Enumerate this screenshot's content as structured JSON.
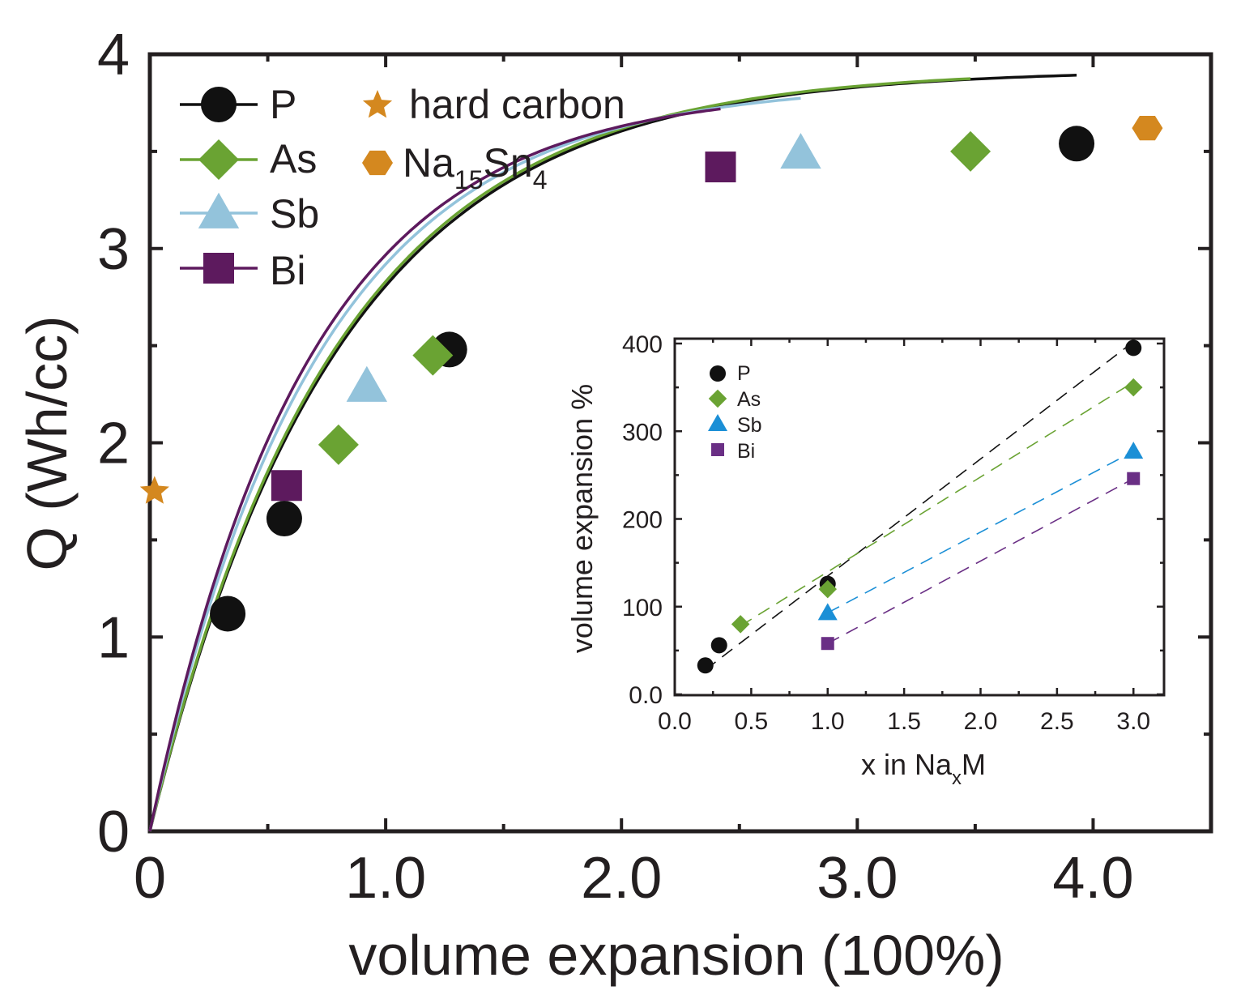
{
  "colors": {
    "axis": "#231f20",
    "P": "#111111",
    "As": "#6aa333",
    "Sb": "#93c3db",
    "Bi": "#5d1a5e",
    "hard_carbon": "#d4881f",
    "Na15Sn4": "#d4881f",
    "inset_P": "#111111",
    "inset_As": "#6aa333",
    "inset_Sb": "#1b8fd6",
    "inset_Bi": "#6a2f85"
  },
  "chart_data": [
    {
      "id": "main",
      "type": "scatter",
      "xlabel": "volume expansion (100%)",
      "ylabel": "Q (Wh/cc)",
      "xlim": [
        0,
        4.5
      ],
      "ylim": [
        0,
        4
      ],
      "xticks": [
        0,
        1.0,
        2.0,
        3.0,
        4.0
      ],
      "xtick_labels": [
        "0",
        "1.0",
        "2.0",
        "3.0",
        "4.0"
      ],
      "yticks": [
        0,
        1,
        2,
        3,
        4
      ],
      "ytick_labels": [
        "0",
        "1",
        "2",
        "3",
        "4"
      ],
      "grid": false,
      "legend_position": "top-left",
      "series": [
        {
          "name": "P",
          "marker": "circle",
          "color_key": "P",
          "fit_curve": true,
          "points": [
            [
              0.33,
              1.12
            ],
            [
              0.57,
              1.61
            ],
            [
              1.27,
              2.48
            ],
            [
              3.93,
              3.54
            ]
          ]
        },
        {
          "name": "As",
          "marker": "diamond",
          "color_key": "As",
          "fit_curve": true,
          "points": [
            [
              0.8,
              1.99
            ],
            [
              1.2,
              2.45
            ],
            [
              3.48,
              3.5
            ]
          ]
        },
        {
          "name": "Sb",
          "marker": "triangle",
          "color_key": "Sb",
          "fit_curve": true,
          "points": [
            [
              0.92,
              2.29
            ],
            [
              2.76,
              3.49
            ]
          ]
        },
        {
          "name": "Bi",
          "marker": "square",
          "color_key": "Bi",
          "fit_curve": true,
          "points": [
            [
              0.58,
              1.78
            ],
            [
              2.42,
              3.42
            ]
          ]
        },
        {
          "name": "hard carbon",
          "marker": "star",
          "color_key": "hard_carbon",
          "fit_curve": false,
          "points": [
            [
              0.02,
              1.75
            ]
          ]
        },
        {
          "name": "Na15Sn4",
          "label_main": "Na",
          "label_sub1": "15",
          "label_mid": "Sn",
          "label_sub2": "4",
          "marker": "hexagon",
          "color_key": "Na15Sn4",
          "fit_curve": false,
          "points": [
            [
              4.23,
              3.62
            ]
          ]
        }
      ],
      "fit_curves": [
        {
          "series": "P",
          "A": 3.92,
          "k": 1.26,
          "x_max": 3.93
        },
        {
          "series": "As",
          "A": 3.92,
          "k": 1.28,
          "x_max": 3.48
        },
        {
          "series": "Sb",
          "A": 3.85,
          "k": 1.42,
          "x_max": 2.76
        },
        {
          "series": "Bi",
          "A": 3.82,
          "k": 1.5,
          "x_max": 2.42
        }
      ]
    },
    {
      "id": "inset",
      "type": "scatter",
      "xlabel_main": "x in Na",
      "xlabel_sub": "x",
      "xlabel_end": "M",
      "ylabel": "volume expansion %",
      "xlim": [
        0,
        3.2
      ],
      "ylim": [
        0,
        400
      ],
      "xticks": [
        0,
        0.5,
        1.0,
        1.5,
        2.0,
        2.5,
        3.0
      ],
      "xtick_labels": [
        "0.0",
        "0.5",
        "1.0",
        "1.5",
        "2.0",
        "2.5",
        "3.0"
      ],
      "yticks": [
        0,
        100,
        200,
        300,
        400
      ],
      "ytick_labels": [
        "0.0",
        "100",
        "200",
        "300",
        "400"
      ],
      "grid": false,
      "legend_position": "top-left",
      "series": [
        {
          "name": "P",
          "marker": "circle",
          "color_key": "inset_P",
          "points": [
            [
              0.2,
              33
            ],
            [
              0.29,
              56
            ],
            [
              1.0,
              126
            ],
            [
              3.0,
              395
            ]
          ],
          "fit_line": [
            [
              0.2,
              28
            ],
            [
              3.0,
              402
            ]
          ]
        },
        {
          "name": "As",
          "marker": "diamond",
          "color_key": "inset_As",
          "points": [
            [
              0.43,
              80
            ],
            [
              1.0,
              120
            ],
            [
              3.0,
              350
            ]
          ],
          "fit_line": [
            [
              0.43,
              78
            ],
            [
              3.0,
              356
            ]
          ]
        },
        {
          "name": "Sb",
          "marker": "triangle",
          "color_key": "inset_Sb",
          "points": [
            [
              1.0,
              93
            ],
            [
              3.0,
              277
            ]
          ],
          "fit_line": [
            [
              1.0,
              93
            ],
            [
              3.0,
              277
            ]
          ]
        },
        {
          "name": "Bi",
          "marker": "square",
          "color_key": "inset_Bi",
          "points": [
            [
              1.0,
              58
            ],
            [
              3.0,
              246
            ]
          ],
          "fit_line": [
            [
              1.0,
              58
            ],
            [
              3.0,
              246
            ]
          ]
        }
      ]
    }
  ]
}
